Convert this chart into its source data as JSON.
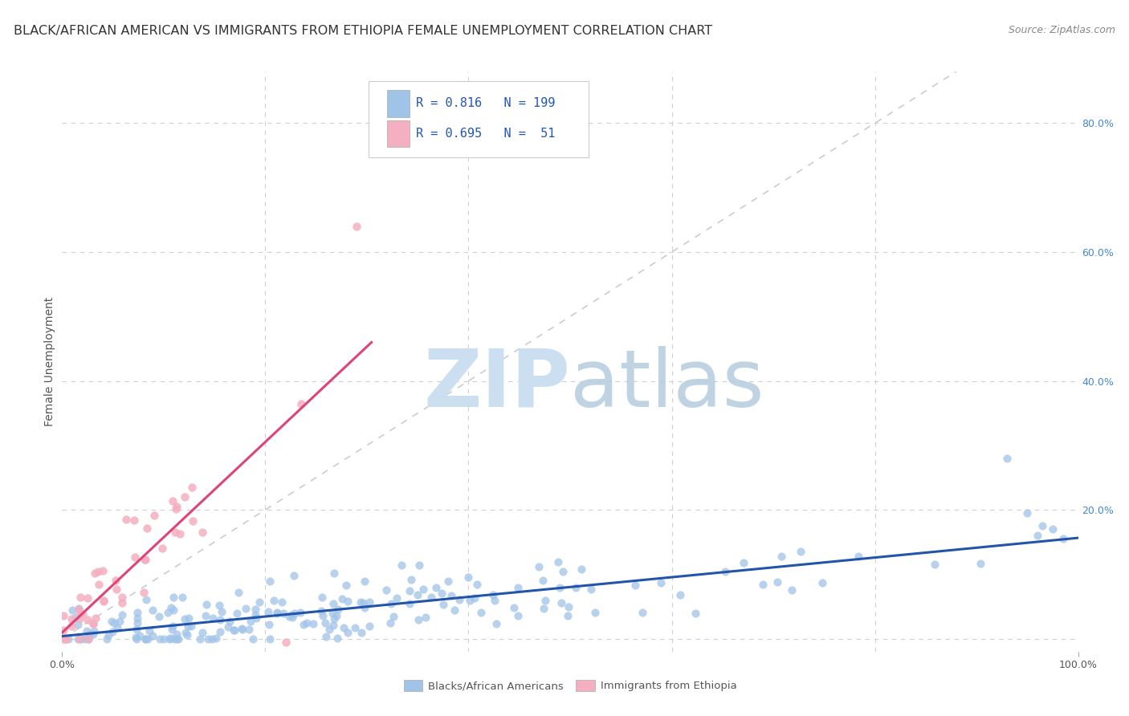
{
  "title": "BLACK/AFRICAN AMERICAN VS IMMIGRANTS FROM ETHIOPIA FEMALE UNEMPLOYMENT CORRELATION CHART",
  "source": "Source: ZipAtlas.com",
  "ylabel": "Female Unemployment",
  "y_tick_labels_right": [
    "",
    "20.0%",
    "40.0%",
    "60.0%",
    "80.0%"
  ],
  "y_tick_positions_right": [
    0.0,
    0.2,
    0.4,
    0.6,
    0.8
  ],
  "xlim": [
    0.0,
    1.0
  ],
  "ylim": [
    -0.02,
    0.88
  ],
  "blue_color": "#a0c4e8",
  "pink_color": "#f4afc0",
  "blue_line_color": "#2255aa",
  "pink_line_color": "#dd4477",
  "diagonal_color": "#cccccc",
  "legend_R_blue": "0.816",
  "legend_N_blue": "199",
  "legend_R_pink": "0.695",
  "legend_N_pink": " 51",
  "legend_label_blue": "Blacks/African Americans",
  "legend_label_pink": "Immigrants from Ethiopia",
  "title_fontsize": 11.5,
  "source_fontsize": 9,
  "axis_fontsize": 9,
  "ylabel_fontsize": 10,
  "right_tick_color": "#4488cc"
}
